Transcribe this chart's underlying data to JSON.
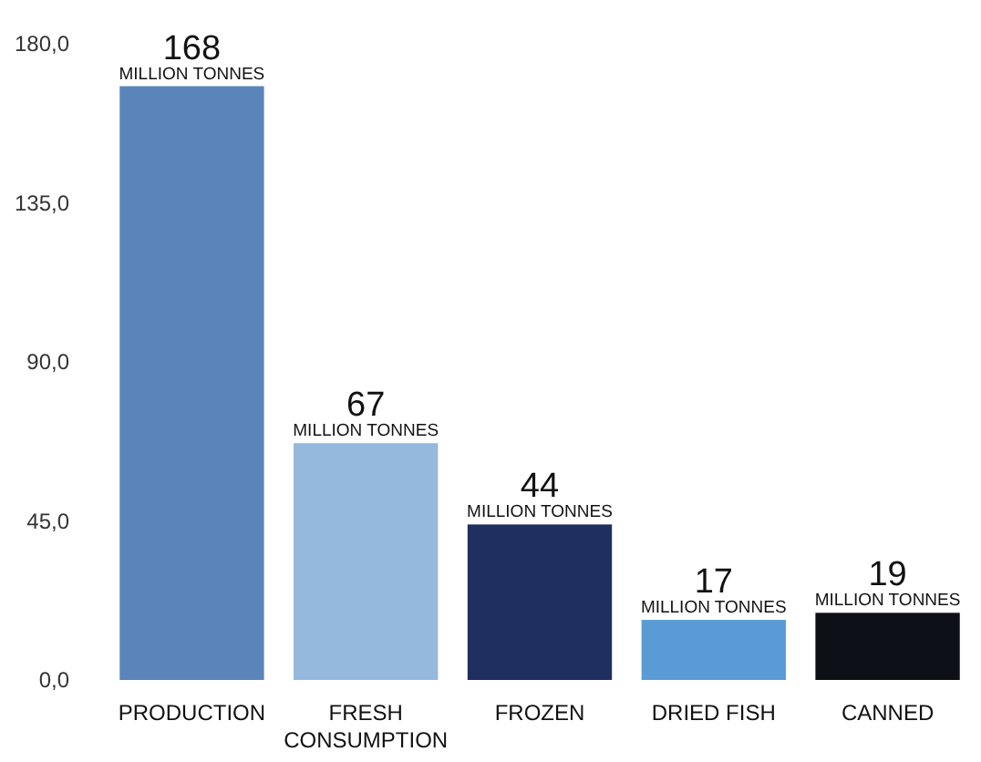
{
  "chart_data": {
    "type": "bar",
    "categories": [
      "PRODUCTION",
      "FRESH CONSUMPTION",
      "FROZEN",
      "DRIED FISH",
      "CANNED"
    ],
    "values": [
      168,
      67,
      44,
      17,
      19
    ],
    "colors": [
      "#5b84bb",
      "#95b9dc",
      "#1f2f60",
      "#5b9bd5",
      "#0d1117"
    ],
    "ylim": [
      0,
      180
    ],
    "yticks": [
      {
        "value": 0,
        "label": "0,0"
      },
      {
        "value": 45,
        "label": "45,0"
      },
      {
        "value": 90,
        "label": "90,0"
      },
      {
        "value": 135,
        "label": "135,0"
      },
      {
        "value": 180,
        "label": "180,0"
      }
    ],
    "data_labels": true,
    "annotations": [
      {
        "text": "MILLION TONNES",
        "x": "PRODUCTION",
        "y": 168
      },
      {
        "text": "MILLION TONNES",
        "x": "FRESH CONSUMPTION",
        "y": 67
      },
      {
        "text": "MILLION TONNES",
        "x": "FROZEN",
        "y": 44
      },
      {
        "text": "MILLION TONNES",
        "x": "DRIED FISH",
        "y": 17
      },
      {
        "text": "MILLION TONNES",
        "x": "CANNED",
        "y": 19
      }
    ]
  }
}
